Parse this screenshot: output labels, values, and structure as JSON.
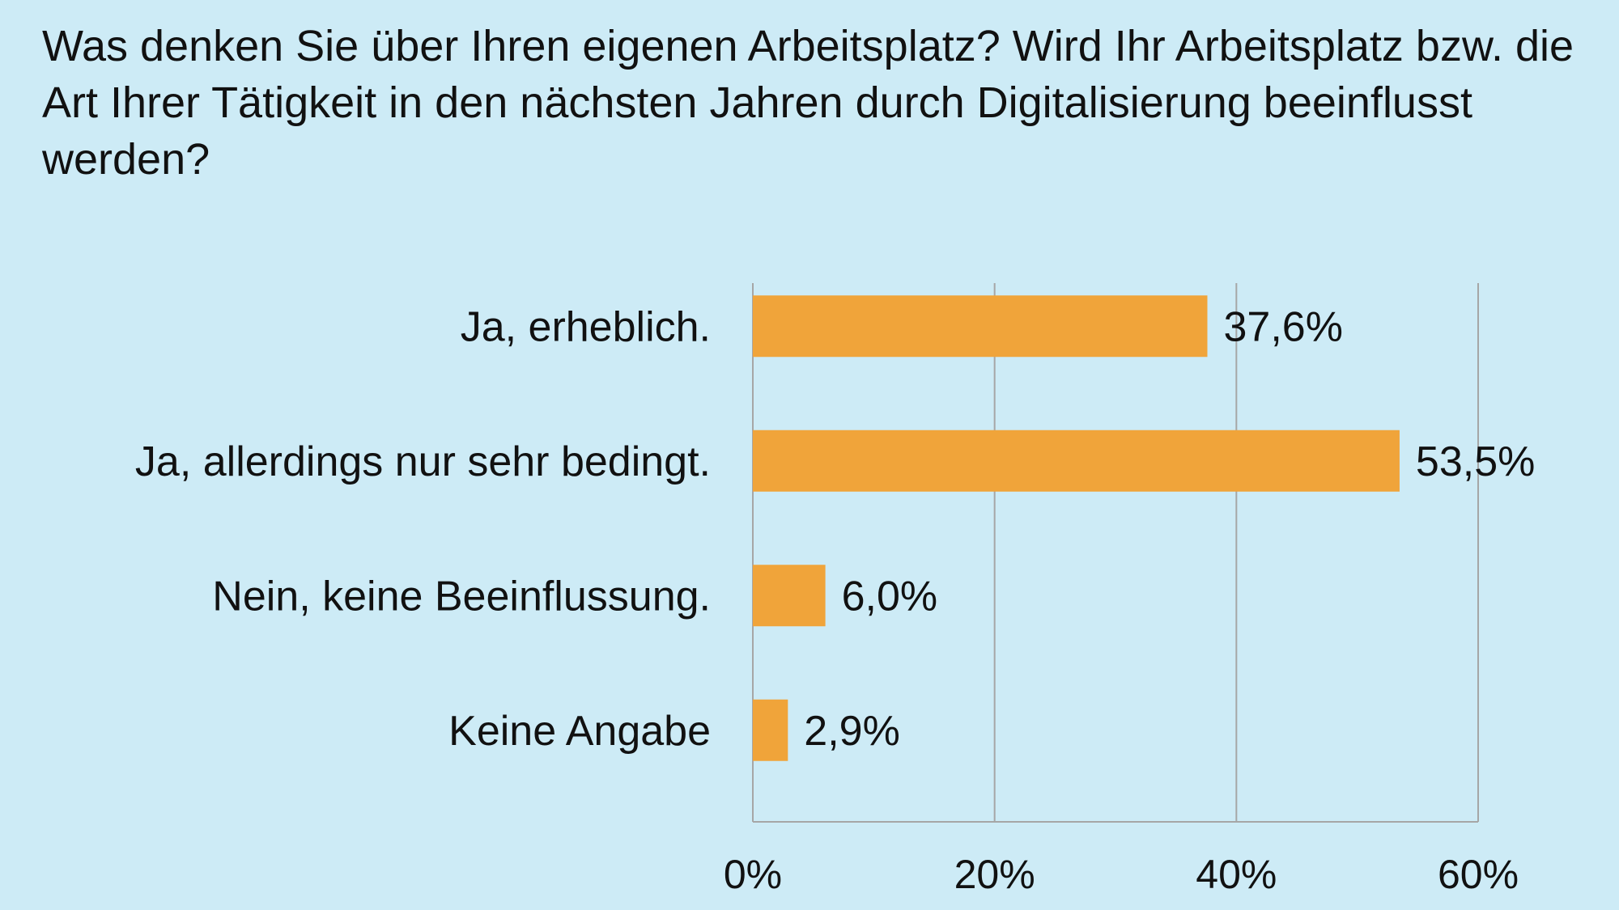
{
  "colors": {
    "background": "#cdebf6",
    "bar": "#f0a43a",
    "gridline": "#a6a6a6",
    "text": "#111111"
  },
  "chart_data": {
    "type": "bar",
    "orientation": "horizontal",
    "title": "Was denken Sie über Ihren eigenen Arbeitsplatz? Wird Ihr Arbeitsplatz bzw. die Art Ihrer Tätigkeit in den nächsten Jahren durch Digitalisierung beeinflusst werden?",
    "categories": [
      "Ja, erheblich.",
      "Ja, allerdings nur sehr bedingt.",
      "Nein, keine Beeinflussung.",
      "Keine Angabe"
    ],
    "values": [
      37.6,
      53.5,
      6.0,
      2.9
    ],
    "data_labels": [
      "37,6%",
      "53,5%",
      "6,0%",
      "2,9%"
    ],
    "xlim": [
      0,
      60
    ],
    "x_ticks": [
      0,
      20,
      40,
      60
    ],
    "x_tick_labels": [
      "0%",
      "20%",
      "40%",
      "60%"
    ],
    "grid": "vertical",
    "legend": "none"
  }
}
